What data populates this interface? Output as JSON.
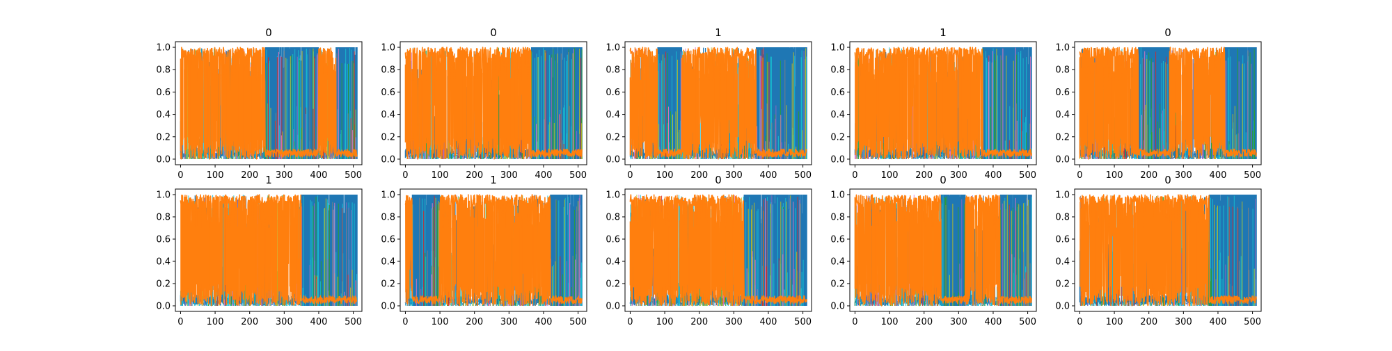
{
  "figure": {
    "colors": {
      "blue": "#1f77b4",
      "orange": "#ff7f0e",
      "cyan": "#17becf",
      "green": "#2ca02c",
      "olive": "#bcbd22",
      "red": "#d62728",
      "purple": "#9467bd",
      "pink": "#e377c2",
      "gray": "#7f7f7f",
      "brown": "#8c564b"
    }
  },
  "chart_data": [
    {
      "type": "line",
      "title": "0",
      "xlim": [
        -15,
        525
      ],
      "ylim": [
        -0.05,
        1.05
      ],
      "xticks": [
        0,
        100,
        200,
        300,
        400,
        500
      ],
      "yticks": [
        0.0,
        0.2,
        0.4,
        0.6,
        0.8,
        1.0
      ],
      "x_tick_labels": [
        "0",
        "100",
        "200",
        "300",
        "400",
        "500"
      ],
      "y_tick_labels": [
        "0.0",
        "0.2",
        "0.4",
        "0.6",
        "0.8",
        "1.0"
      ],
      "grid": false,
      "x_points": 512,
      "regions": [
        {
          "from": 0,
          "to": 245,
          "dominant": "orange"
        },
        {
          "from": 245,
          "to": 400,
          "dominant": "blue"
        },
        {
          "from": 400,
          "to": 450,
          "dominant": "orange"
        },
        {
          "from": 450,
          "to": 512,
          "dominant": "blue"
        }
      ]
    },
    {
      "type": "line",
      "title": "0",
      "xlim": [
        -15,
        525
      ],
      "ylim": [
        -0.05,
        1.05
      ],
      "xticks": [
        0,
        100,
        200,
        300,
        400,
        500
      ],
      "yticks": [
        0.0,
        0.2,
        0.4,
        0.6,
        0.8,
        1.0
      ],
      "x_tick_labels": [
        "0",
        "100",
        "200",
        "300",
        "400",
        "500"
      ],
      "y_tick_labels": [
        "0.0",
        "0.2",
        "0.4",
        "0.6",
        "0.8",
        "1.0"
      ],
      "grid": false,
      "x_points": 512,
      "regions": [
        {
          "from": 0,
          "to": 365,
          "dominant": "orange"
        },
        {
          "from": 365,
          "to": 512,
          "dominant": "blue"
        }
      ]
    },
    {
      "type": "line",
      "title": "1",
      "xlim": [
        -15,
        525
      ],
      "ylim": [
        -0.05,
        1.05
      ],
      "xticks": [
        0,
        100,
        200,
        300,
        400,
        500
      ],
      "yticks": [
        0.0,
        0.2,
        0.4,
        0.6,
        0.8,
        1.0
      ],
      "x_tick_labels": [
        "0",
        "100",
        "200",
        "300",
        "400",
        "500"
      ],
      "y_tick_labels": [
        "0.0",
        "0.2",
        "0.4",
        "0.6",
        "0.8",
        "1.0"
      ],
      "grid": false,
      "x_points": 512,
      "regions": [
        {
          "from": 0,
          "to": 80,
          "dominant": "orange"
        },
        {
          "from": 80,
          "to": 150,
          "dominant": "blue"
        },
        {
          "from": 150,
          "to": 365,
          "dominant": "orange"
        },
        {
          "from": 365,
          "to": 512,
          "dominant": "blue"
        }
      ]
    },
    {
      "type": "line",
      "title": "1",
      "xlim": [
        -15,
        525
      ],
      "ylim": [
        -0.05,
        1.05
      ],
      "xticks": [
        0,
        100,
        200,
        300,
        400,
        500
      ],
      "yticks": [
        0.0,
        0.2,
        0.4,
        0.6,
        0.8,
        1.0
      ],
      "x_tick_labels": [
        "0",
        "100",
        "200",
        "300",
        "400",
        "500"
      ],
      "y_tick_labels": [
        "0.0",
        "0.2",
        "0.4",
        "0.6",
        "0.8",
        "1.0"
      ],
      "grid": false,
      "x_points": 512,
      "regions": [
        {
          "from": 0,
          "to": 370,
          "dominant": "orange"
        },
        {
          "from": 370,
          "to": 512,
          "dominant": "blue"
        }
      ]
    },
    {
      "type": "line",
      "title": "0",
      "xlim": [
        -15,
        525
      ],
      "ylim": [
        -0.05,
        1.05
      ],
      "xticks": [
        0,
        100,
        200,
        300,
        400,
        500
      ],
      "yticks": [
        0.0,
        0.2,
        0.4,
        0.6,
        0.8,
        1.0
      ],
      "x_tick_labels": [
        "0",
        "100",
        "200",
        "300",
        "400",
        "500"
      ],
      "y_tick_labels": [
        "0.0",
        "0.2",
        "0.4",
        "0.6",
        "0.8",
        "1.0"
      ],
      "grid": false,
      "x_points": 512,
      "regions": [
        {
          "from": 0,
          "to": 170,
          "dominant": "orange"
        },
        {
          "from": 170,
          "to": 260,
          "dominant": "blue"
        },
        {
          "from": 260,
          "to": 420,
          "dominant": "orange"
        },
        {
          "from": 420,
          "to": 512,
          "dominant": "blue"
        }
      ]
    },
    {
      "type": "line",
      "title": "1",
      "xlim": [
        -15,
        525
      ],
      "ylim": [
        -0.05,
        1.05
      ],
      "xticks": [
        0,
        100,
        200,
        300,
        400,
        500
      ],
      "yticks": [
        0.0,
        0.2,
        0.4,
        0.6,
        0.8,
        1.0
      ],
      "x_tick_labels": [
        "0",
        "100",
        "200",
        "300",
        "400",
        "500"
      ],
      "y_tick_labels": [
        "0.0",
        "0.2",
        "0.4",
        "0.6",
        "0.8",
        "1.0"
      ],
      "grid": false,
      "x_points": 512,
      "regions": [
        {
          "from": 0,
          "to": 350,
          "dominant": "orange"
        },
        {
          "from": 350,
          "to": 512,
          "dominant": "blue"
        }
      ]
    },
    {
      "type": "line",
      "title": "1",
      "xlim": [
        -15,
        525
      ],
      "ylim": [
        -0.05,
        1.05
      ],
      "xticks": [
        0,
        100,
        200,
        300,
        400,
        500
      ],
      "yticks": [
        0.0,
        0.2,
        0.4,
        0.6,
        0.8,
        1.0
      ],
      "x_tick_labels": [
        "0",
        "100",
        "200",
        "300",
        "400",
        "500"
      ],
      "y_tick_labels": [
        "0.0",
        "0.2",
        "0.4",
        "0.6",
        "0.8",
        "1.0"
      ],
      "grid": false,
      "x_points": 512,
      "regions": [
        {
          "from": 0,
          "to": 20,
          "dominant": "orange"
        },
        {
          "from": 20,
          "to": 100,
          "dominant": "blue"
        },
        {
          "from": 100,
          "to": 420,
          "dominant": "orange"
        },
        {
          "from": 420,
          "to": 512,
          "dominant": "blue"
        }
      ]
    },
    {
      "type": "line",
      "title": "0",
      "xlim": [
        -15,
        525
      ],
      "ylim": [
        -0.05,
        1.05
      ],
      "xticks": [
        0,
        100,
        200,
        300,
        400,
        500
      ],
      "yticks": [
        0.0,
        0.2,
        0.4,
        0.6,
        0.8,
        1.0
      ],
      "x_tick_labels": [
        "0",
        "100",
        "200",
        "300",
        "400",
        "500"
      ],
      "y_tick_labels": [
        "0.0",
        "0.2",
        "0.4",
        "0.6",
        "0.8",
        "1.0"
      ],
      "grid": false,
      "x_points": 512,
      "regions": [
        {
          "from": 0,
          "to": 330,
          "dominant": "orange"
        },
        {
          "from": 330,
          "to": 512,
          "dominant": "blue"
        }
      ]
    },
    {
      "type": "line",
      "title": "0",
      "xlim": [
        -15,
        525
      ],
      "ylim": [
        -0.05,
        1.05
      ],
      "xticks": [
        0,
        100,
        200,
        300,
        400,
        500
      ],
      "yticks": [
        0.0,
        0.2,
        0.4,
        0.6,
        0.8,
        1.0
      ],
      "x_tick_labels": [
        "0",
        "100",
        "200",
        "300",
        "400",
        "500"
      ],
      "y_tick_labels": [
        "0.0",
        "0.2",
        "0.4",
        "0.6",
        "0.8",
        "1.0"
      ],
      "grid": false,
      "x_points": 512,
      "regions": [
        {
          "from": 0,
          "to": 250,
          "dominant": "orange"
        },
        {
          "from": 250,
          "to": 320,
          "dominant": "blue"
        },
        {
          "from": 320,
          "to": 420,
          "dominant": "orange"
        },
        {
          "from": 420,
          "to": 512,
          "dominant": "blue"
        }
      ]
    },
    {
      "type": "line",
      "title": "0",
      "xlim": [
        -15,
        525
      ],
      "ylim": [
        -0.05,
        1.05
      ],
      "xticks": [
        0,
        100,
        200,
        300,
        400,
        500
      ],
      "yticks": [
        0.0,
        0.2,
        0.4,
        0.6,
        0.8,
        1.0
      ],
      "x_tick_labels": [
        "0",
        "100",
        "200",
        "300",
        "400",
        "500"
      ],
      "y_tick_labels": [
        "0.0",
        "0.2",
        "0.4",
        "0.6",
        "0.8",
        "1.0"
      ],
      "grid": false,
      "x_points": 512,
      "regions": [
        {
          "from": 0,
          "to": 375,
          "dominant": "orange"
        },
        {
          "from": 375,
          "to": 512,
          "dominant": "blue"
        }
      ]
    }
  ]
}
